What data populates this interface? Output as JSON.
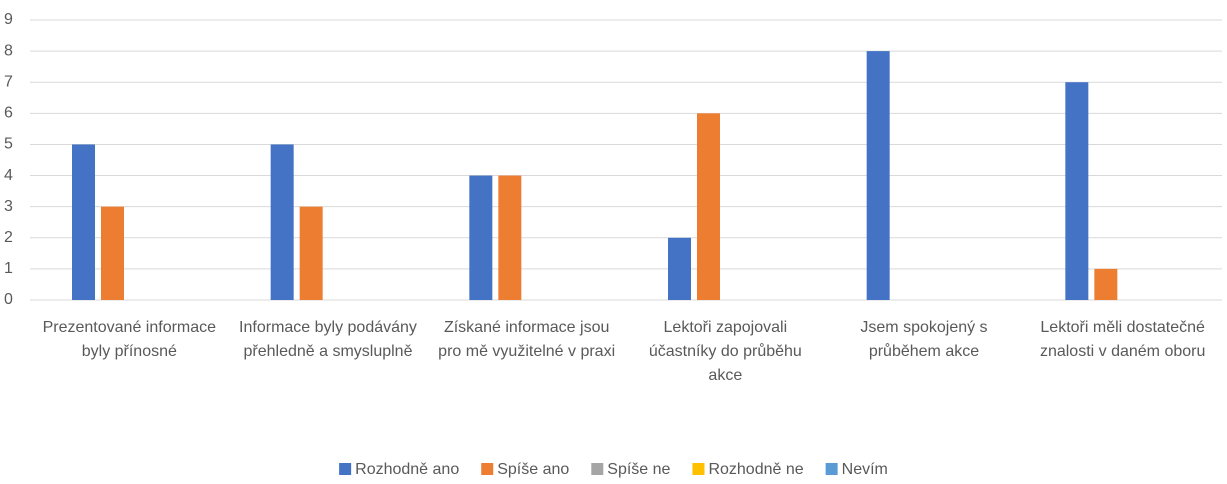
{
  "chart_data": {
    "type": "bar",
    "categories": [
      "Prezentované informace byly přínosné",
      "Informace byly podávány přehledně a smysluplně",
      "Získané informace jsou pro mě využitelné v praxi",
      "Lektoři zapojovali účastníky do průběhu akce",
      "Jsem spokojený s průběhem akce",
      "Lektoři měli dostatečné znalosti v daném oboru"
    ],
    "series": [
      {
        "name": "Rozhodně ano",
        "color": "#4472c4",
        "values": [
          5,
          5,
          4,
          2,
          8,
          7
        ]
      },
      {
        "name": "Spíše ano",
        "color": "#ed7d31",
        "values": [
          3,
          3,
          4,
          6,
          0,
          1
        ]
      },
      {
        "name": "Spíše ne",
        "color": "#a5a5a5",
        "values": [
          0,
          0,
          0,
          0,
          0,
          0
        ]
      },
      {
        "name": "Rozhodně ne",
        "color": "#ffc000",
        "values": [
          0,
          0,
          0,
          0,
          0,
          0
        ]
      },
      {
        "name": "Nevím",
        "color": "#5b9bd5",
        "values": [
          0,
          0,
          0,
          0,
          0,
          0
        ]
      }
    ],
    "ylim": [
      0,
      9
    ],
    "yticks": [
      0,
      1,
      2,
      3,
      4,
      5,
      6,
      7,
      8,
      9
    ],
    "grid": true,
    "legend": "bottom"
  }
}
